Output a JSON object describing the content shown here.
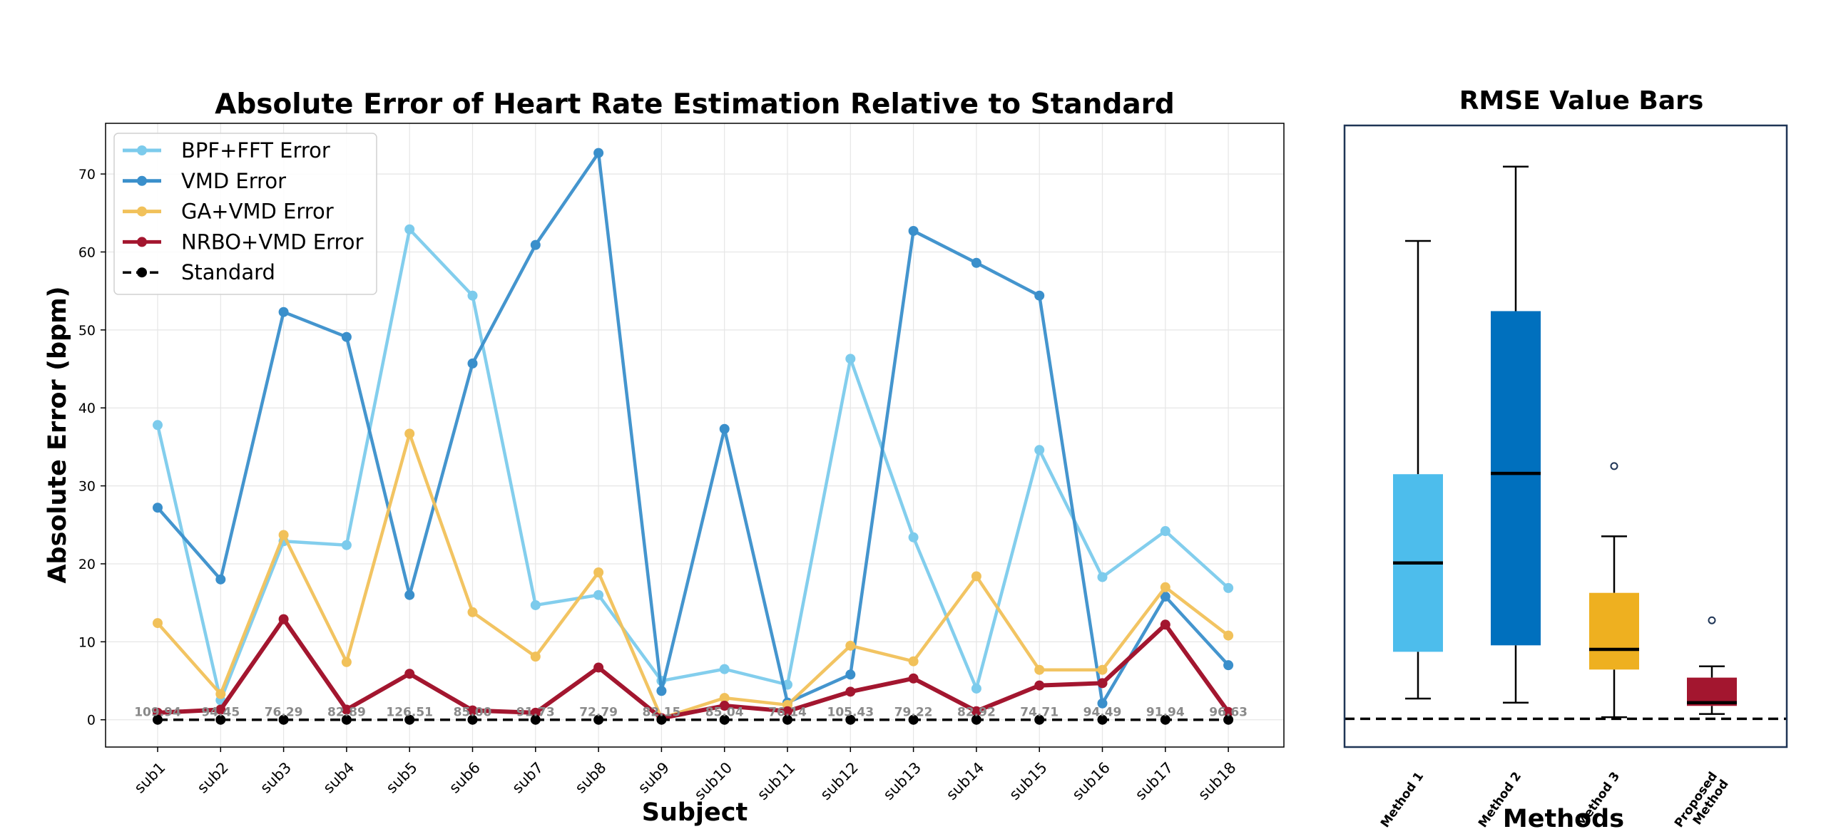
{
  "chart_data": [
    {
      "type": "line",
      "title": "Absolute Error of Heart Rate Estimation Relative to Standard",
      "xlabel": "Subject",
      "ylabel": "Absolute Error (bpm)",
      "ylim": [
        -3.5,
        76.5
      ],
      "yticks": [
        0,
        10,
        20,
        30,
        40,
        50,
        60,
        70
      ],
      "grid": true,
      "legend_position": "top-left",
      "categories": [
        "sub1",
        "sub2",
        "sub3",
        "sub4",
        "sub5",
        "sub6",
        "sub7",
        "sub8",
        "sub9",
        "sub10",
        "sub11",
        "sub12",
        "sub13",
        "sub14",
        "sub15",
        "sub16",
        "sub17",
        "sub18"
      ],
      "series": [
        {
          "name": "BPF+FFT Error",
          "color": "#7ccbec",
          "values": [
            37.8,
            2.5,
            22.9,
            22.4,
            62.9,
            54.4,
            14.7,
            16.0,
            5.0,
            6.5,
            4.5,
            46.3,
            23.4,
            4.0,
            34.6,
            18.3,
            24.2,
            16.9
          ]
        },
        {
          "name": "VMD Error",
          "color": "#3a8fcb",
          "values": [
            27.2,
            18.0,
            52.3,
            49.1,
            16.0,
            45.7,
            60.9,
            72.7,
            3.7,
            37.3,
            2.2,
            5.8,
            62.7,
            58.6,
            54.4,
            2.1,
            15.8,
            7.0
          ]
        },
        {
          "name": "GA+VMD Error",
          "color": "#f1c15a",
          "values": [
            12.4,
            3.3,
            23.7,
            7.4,
            36.7,
            13.8,
            8.1,
            18.9,
            0.2,
            2.8,
            1.9,
            9.5,
            7.5,
            18.4,
            6.4,
            6.4,
            17.0,
            10.8
          ]
        },
        {
          "name": "NRBO+VMD Error",
          "color": "#a3162f",
          "values": [
            0.9,
            1.3,
            12.9,
            1.3,
            5.9,
            1.2,
            0.9,
            6.7,
            0.2,
            1.8,
            1.1,
            3.6,
            5.3,
            1.1,
            4.4,
            4.7,
            12.2,
            1.0
          ]
        },
        {
          "name": "Standard",
          "color": "#000000",
          "values": [
            0,
            0,
            0,
            0,
            0,
            0,
            0,
            0,
            0,
            0,
            0,
            0,
            0,
            0,
            0,
            0,
            0,
            0
          ]
        }
      ],
      "standard_labels": [
        "109.94",
        "94.45",
        "76.29",
        "82.89",
        "126.51",
        "85.00",
        "91.73",
        "72.79",
        "82.15",
        "85.04",
        "76.14",
        "105.43",
        "79.22",
        "82.92",
        "74.71",
        "94.49",
        "91.94",
        "96.63"
      ]
    },
    {
      "type": "box",
      "title": "RMSE Value Bars",
      "xlabel": "Methods",
      "ylim": [
        -3.5,
        73.5
      ],
      "reference_line": 0,
      "categories": [
        "Method 1",
        "Method 2",
        "Method 3",
        "Proposed Method"
      ],
      "boxes": [
        {
          "label": "Method 1",
          "color": "#4dbdec",
          "whisker_low": 2.5,
          "q1": 8.3,
          "median": 19.3,
          "q3": 30.3,
          "whisker_high": 59.2,
          "outliers": []
        },
        {
          "label": "Method 2",
          "color": "#0070be",
          "whisker_low": 2.0,
          "q1": 9.1,
          "median": 30.4,
          "q3": 50.5,
          "whisker_high": 68.4,
          "outliers": []
        },
        {
          "label": "Method 3",
          "color": "#eeb020",
          "whisker_low": 0.2,
          "q1": 6.1,
          "median": 8.6,
          "q3": 15.6,
          "whisker_high": 22.6,
          "outliers": [
            31.3
          ]
        },
        {
          "label": "Proposed Method",
          "color": "#a3162f",
          "whisker_low": 0.6,
          "q1": 1.6,
          "median": 2.0,
          "q3": 5.1,
          "whisker_high": 6.5,
          "outliers": [
            12.2
          ]
        }
      ]
    }
  ]
}
